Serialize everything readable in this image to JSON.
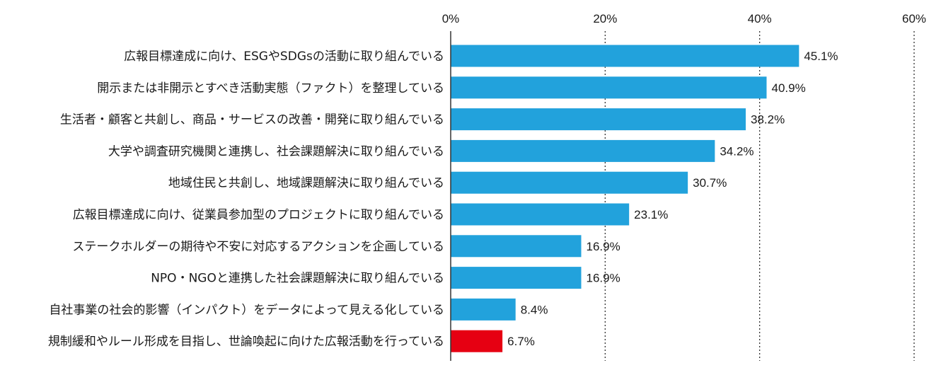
{
  "chart_data": {
    "type": "bar",
    "orientation": "horizontal",
    "categories": [
      "広報目標達成に向け、ESGやSDGsの活動に取り組んでいる",
      "開示または非開示とすべき活動実態（ファクト）を整理している",
      "生活者・顧客と共創し、商品・サービスの改善・開発に取り組んでいる",
      "大学や調査研究機関と連携し、社会課題解決に取り組んでいる",
      "地域住民と共創し、地域課題解決に取り組んでいる",
      "広報目標達成に向け、従業員参加型のプロジェクトに取り組んでいる",
      "ステークホルダーの期待や不安に対応するアクションを企画している",
      "NPO・NGOと連携した社会課題解決に取り組んでいる",
      "自社事業の社会的影響（インパクト）をデータによって見える化している",
      "規制緩和やルール形成を目指し、世論喚起に向けた広報活動を行っている"
    ],
    "values": [
      45.1,
      40.9,
      38.2,
      34.2,
      30.7,
      23.1,
      16.9,
      16.9,
      8.4,
      6.7
    ],
    "value_labels": [
      "45.1%",
      "40.9%",
      "38.2%",
      "34.2%",
      "30.7%",
      "23.1%",
      "16.9%",
      "16.9%",
      "8.4%",
      "6.7%"
    ],
    "xlim": [
      0,
      60
    ],
    "xticks": [
      0,
      20,
      40,
      60
    ],
    "xtick_labels": [
      "0%",
      "20%",
      "40%",
      "60%"
    ],
    "axis_position": "top",
    "grid": "vertical-dotted",
    "colors": {
      "default": "#22a2dc",
      "highlight": "#e60012",
      "highlight_index": 9,
      "grid": "#333333",
      "axis": "#333333"
    }
  }
}
